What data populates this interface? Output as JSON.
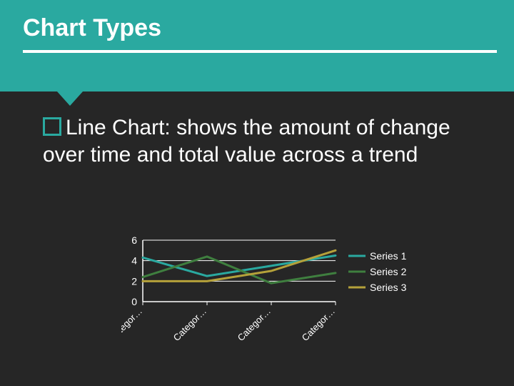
{
  "slide": {
    "background_color": "#262626",
    "header": {
      "title": "Chart Types",
      "bg_color": "#2aa9a0",
      "rule_color": "#ffffff",
      "title_color": "#ffffff",
      "title_fontsize": 34,
      "pointer_color": "#2aa9a0"
    },
    "body": {
      "bullet_border_color": "#2aa9a0",
      "text": "Line Chart: shows the amount of change over time and total value across a trend",
      "text_color": "#ffffff",
      "fontsize": 30
    }
  },
  "chart": {
    "type": "line",
    "plot_bg": "#262626",
    "axis_color": "#ffffff",
    "grid_color": "#ffffff",
    "line_width": 3,
    "categories": [
      "Categor…",
      "Categor…",
      "Categor…",
      "Categor…"
    ],
    "ylim": [
      0,
      6
    ],
    "yticks": [
      0,
      2,
      4,
      6
    ],
    "series": [
      {
        "name": "Series 1",
        "color": "#2aa9a0",
        "values": [
          4.3,
          2.5,
          3.5,
          4.5
        ]
      },
      {
        "name": "Series 2",
        "color": "#3f7f3f",
        "values": [
          2.4,
          4.4,
          1.8,
          2.8
        ]
      },
      {
        "name": "Series 3",
        "color": "#b5a13a",
        "values": [
          2.0,
          2.0,
          3.0,
          5.0
        ]
      }
    ],
    "legend": {
      "position": "right",
      "label_color": "#ffffff",
      "fontsize": 14
    },
    "x_label_rotation_deg": -45,
    "x_label_fontsize": 13,
    "tick_label_fontsize": 14
  }
}
